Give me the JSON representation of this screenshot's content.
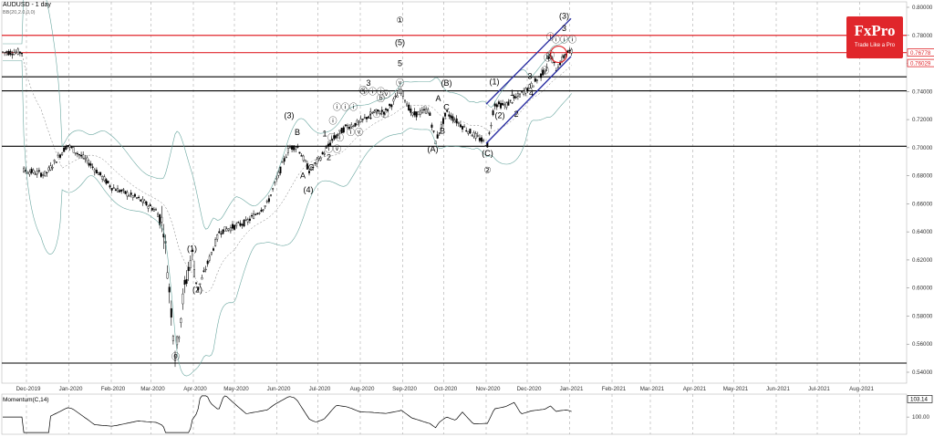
{
  "header": {
    "title": "AUDUSD - 1 day",
    "indicator": "BB(20,2.0,0,0)"
  },
  "brand": {
    "name": "FxPro",
    "tagline": "Trade Like a Pro",
    "color": "#e0262b"
  },
  "momentum": {
    "title": "Momentum(C,14)",
    "ticks": [
      "103.14",
      "100.00"
    ],
    "ylim": [
      97,
      104
    ],
    "current": 101.5
  },
  "chart_data": {
    "type": "candlestick",
    "ylim": [
      0.54,
      0.81
    ],
    "y_ticks": [
      "0.80000",
      "0.78000",
      "0.76000",
      "0.74000",
      "0.72000",
      "0.70000",
      "0.68000",
      "0.66000",
      "0.64000",
      "0.62000",
      "0.60000",
      "0.58000",
      "0.56000",
      "0.54000"
    ],
    "x_ticks": [
      "Dec-2019",
      "Jan-2020",
      "Feb-2020",
      "Mar-2020",
      "Apr-2020",
      "May-2020",
      "Jun-2020",
      "Jul-2020",
      "Aug-2020",
      "Sep-2020",
      "Oct-2020",
      "Nov-2020",
      "Dec-2020",
      "Jan-2021",
      "Feb-2021",
      "Mar-2021",
      "Apr-2021",
      "May-2021",
      "Jun-2021",
      "Jul-2021",
      "Aug-2021"
    ],
    "price_labels": [
      {
        "text": "0.76778",
        "value": 0.76778,
        "color": "#e0262b"
      },
      {
        "text": "0.76029",
        "value": 0.76029,
        "color": "#e0262b"
      }
    ],
    "resistance_lines": [
      0.78,
      0.7677
    ],
    "support_lines": [
      0.7505,
      0.7405,
      0.701,
      0.5465
    ],
    "channel": {
      "upper": [
        [
          "2020-11-01",
          0.731
        ],
        [
          "2021-01-02",
          0.792
        ]
      ],
      "lower": [
        [
          "2020-11-01",
          0.703
        ],
        [
          "2021-01-02",
          0.765
        ]
      ]
    },
    "waves": [
      {
        "t": "⓪",
        "d": "2020-03-19",
        "p": 0.549
      },
      {
        "t": "(1)",
        "d": "2020-03-31",
        "p": 0.626
      },
      {
        "t": "(2)",
        "d": "2020-04-04",
        "p": 0.597
      },
      {
        "t": "(3)",
        "d": "2020-06-10",
        "p": 0.721
      },
      {
        "t": "B",
        "d": "2020-06-16",
        "p": 0.709
      },
      {
        "t": "A",
        "d": "2020-06-20",
        "p": 0.678
      },
      {
        "t": "C",
        "d": "2020-06-26",
        "p": 0.684
      },
      {
        "t": "(4)",
        "d": "2020-06-24",
        "p": 0.668
      },
      {
        "t": "1",
        "d": "2020-07-06",
        "p": 0.708
      },
      {
        "t": "2",
        "d": "2020-07-09",
        "p": 0.691
      },
      {
        "t": "ⓘ",
        "d": "2020-07-12",
        "p": 0.717
      },
      {
        "t": "ⓘⓘ",
        "d": "2020-07-14",
        "p": 0.705
      },
      {
        "t": "ⓘⓥ",
        "d": "2020-07-12",
        "p": 0.697
      },
      {
        "t": "ⓘⓘⓘ",
        "d": "2020-07-21",
        "p": 0.727
      },
      {
        "t": "ⓘⓥ",
        "d": "2020-07-28",
        "p": 0.709
      },
      {
        "t": "ⓥ",
        "d": "2020-08-03",
        "p": 0.739
      },
      {
        "t": "3",
        "d": "2020-08-07",
        "p": 0.744
      },
      {
        "t": "4",
        "d": "2020-08-08",
        "p": 0.72
      },
      {
        "t": "ⓘⓘⓘ",
        "d": "2020-08-10",
        "p": 0.738
      },
      {
        "t": "ⓘⓥ",
        "d": "2020-08-16",
        "p": 0.722
      },
      {
        "t": "ⓑ",
        "d": "2020-08-16",
        "p": 0.733
      },
      {
        "t": "ⓥ",
        "d": "2020-08-20",
        "p": 0.736
      },
      {
        "t": "①",
        "d": "2020-08-30",
        "p": 0.789
      },
      {
        "t": "(5)",
        "d": "2020-08-30",
        "p": 0.773
      },
      {
        "t": "5",
        "d": "2020-08-30",
        "p": 0.758
      },
      {
        "t": "ⓥ",
        "d": "2020-08-30",
        "p": 0.744
      },
      {
        "t": "(B)",
        "d": "2020-10-03",
        "p": 0.744
      },
      {
        "t": "A",
        "d": "2020-09-27",
        "p": 0.733
      },
      {
        "t": "C",
        "d": "2020-10-03",
        "p": 0.727
      },
      {
        "t": "B",
        "d": "2020-09-30",
        "p": 0.71
      },
      {
        "t": "(A)",
        "d": "2020-09-23",
        "p": 0.697
      },
      {
        "t": "(C)",
        "d": "2020-11-02",
        "p": 0.694
      },
      {
        "t": "②",
        "d": "2020-11-02",
        "p": 0.682
      },
      {
        "t": "(1)",
        "d": "2020-11-07",
        "p": 0.745
      },
      {
        "t": "(2)",
        "d": "2020-11-11",
        "p": 0.721
      },
      {
        "t": "1",
        "d": "2020-11-20",
        "p": 0.737
      },
      {
        "t": "2",
        "d": "2020-11-23",
        "p": 0.722
      },
      {
        "t": "3",
        "d": "2020-12-03",
        "p": 0.749
      },
      {
        "t": "4",
        "d": "2020-12-04",
        "p": 0.737
      },
      {
        "t": "ⓘ",
        "d": "2020-12-18",
        "p": 0.777
      },
      {
        "t": "ⓐ",
        "d": "2020-12-14",
        "p": 0.753
      },
      {
        "t": "ⓑ",
        "d": "2020-12-16",
        "p": 0.762
      },
      {
        "t": "ⓒ",
        "d": "2020-12-18",
        "p": 0.764
      },
      {
        "t": "(3)",
        "d": "2020-12-28",
        "p": 0.792
      },
      {
        "t": "3",
        "d": "2020-12-28",
        "p": 0.783
      },
      {
        "t": "ⓘⓘⓘ",
        "d": "2020-12-28",
        "p": 0.775
      }
    ]
  }
}
